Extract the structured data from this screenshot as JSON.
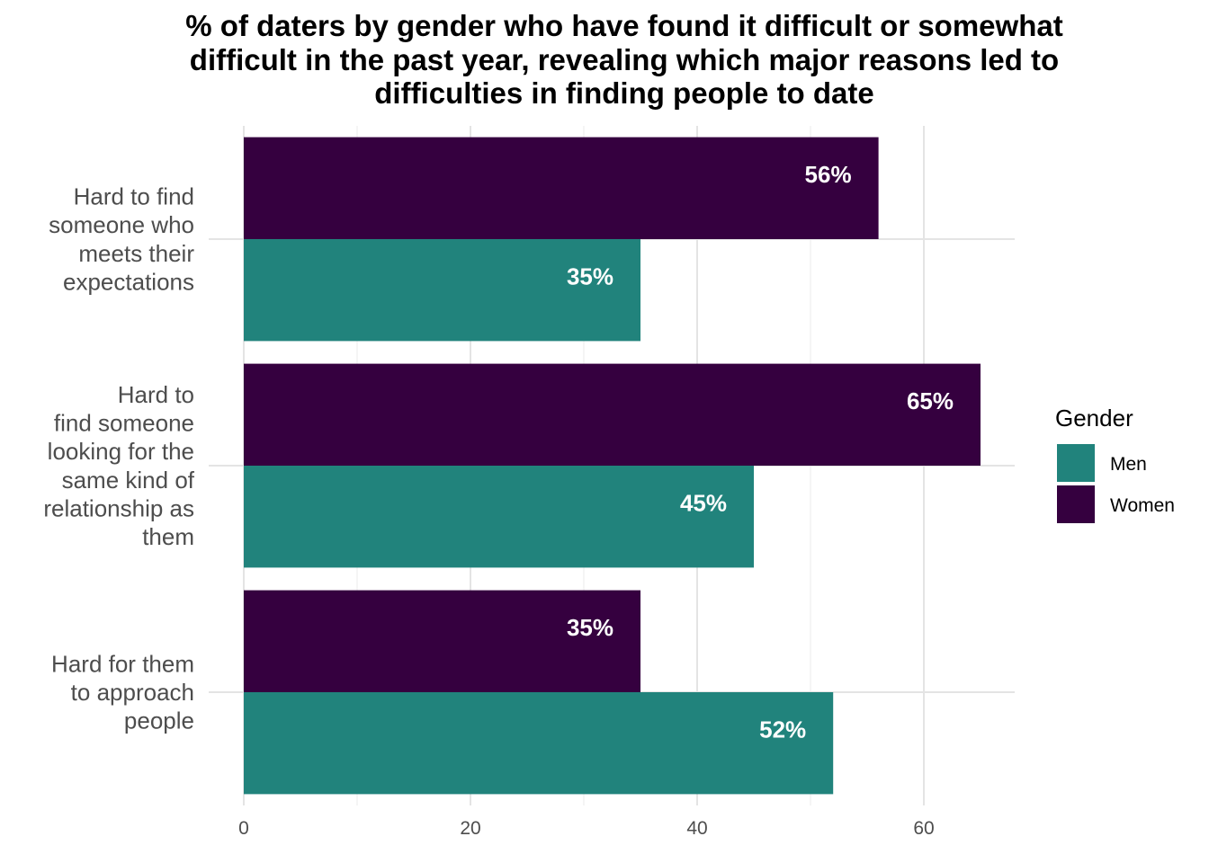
{
  "chart_data": {
    "type": "bar",
    "orientation": "horizontal",
    "title_lines": [
      "% of daters by gender who have found it difficult or somewhat",
      "difficult in the past year, revealing which major reasons led to",
      "difficulties in finding people to date"
    ],
    "xlabel": "",
    "ylabel": "",
    "xlim": [
      0,
      68
    ],
    "x_ticks": [
      0,
      20,
      40,
      60
    ],
    "grid": true,
    "categories": [
      {
        "lines": [
          "Hard to find",
          "someone who",
          "meets their",
          "expectations"
        ]
      },
      {
        "lines": [
          "Hard to",
          "find someone",
          "looking for the",
          "same kind of",
          "relationship as",
          "them"
        ]
      },
      {
        "lines": [
          "Hard for them",
          "to approach",
          "people"
        ]
      }
    ],
    "series": [
      {
        "name": "Women",
        "color": "#35003f",
        "values": [
          56,
          65,
          35
        ],
        "labels": [
          "56%",
          "65%",
          "35%"
        ]
      },
      {
        "name": "Men",
        "color": "#21837c",
        "values": [
          35,
          45,
          52
        ],
        "labels": [
          "35%",
          "45%",
          "52%"
        ]
      }
    ],
    "legend": {
      "title": "Gender",
      "position": "right",
      "items": [
        {
          "name": "Men",
          "color": "#21837c"
        },
        {
          "name": "Women",
          "color": "#35003f"
        }
      ]
    }
  }
}
